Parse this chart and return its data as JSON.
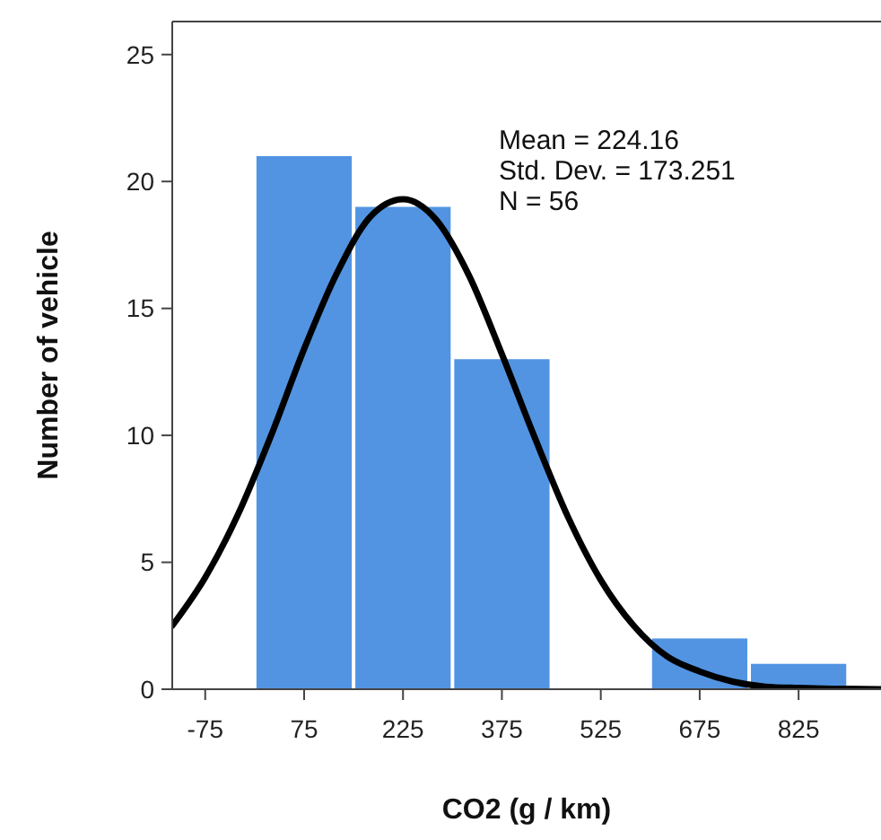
{
  "chart_data": {
    "type": "histogram",
    "xlabel": "CO2 (g / km)",
    "ylabel": "Number of vehicle",
    "bins": [
      0,
      150,
      300,
      450,
      600,
      750,
      900
    ],
    "values": [
      21,
      19,
      13,
      0,
      2,
      1
    ],
    "color": "#5294e2",
    "series": [
      {
        "type": "line",
        "color": "#000000",
        "x": [
          -125,
          -75,
          -25,
          25,
          75,
          125,
          175,
          225,
          275,
          325,
          375,
          425,
          475,
          525,
          575,
          625,
          675,
          725,
          775,
          825,
          875,
          925,
          950
        ],
        "values": [
          2.5,
          4.4,
          6.9,
          10.0,
          13.4,
          16.4,
          18.6,
          19.3,
          18.5,
          16.3,
          13.2,
          9.9,
          6.8,
          4.3,
          2.5,
          1.3,
          0.7,
          0.3,
          0.1,
          0.05,
          0.02,
          0.01,
          0.0
        ]
      }
    ],
    "annotations": [
      "Mean = 224.16",
      "Std. Dev. = 173.251",
      "N = 56"
    ],
    "xlim": [
      -125,
      950
    ],
    "xticks": [
      -75,
      75,
      225,
      375,
      525,
      675,
      825
    ],
    "ylim": [
      0,
      26.3
    ],
    "yticks": [
      0,
      5,
      10,
      15,
      20,
      25
    ],
    "grid": false
  }
}
